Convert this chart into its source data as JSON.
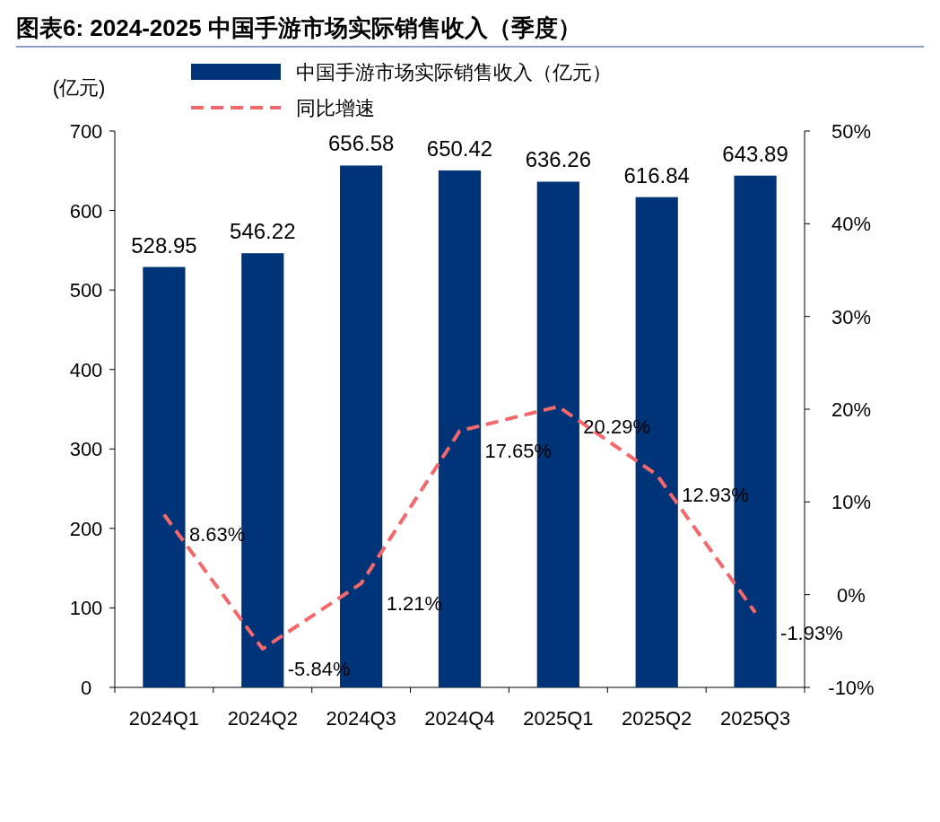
{
  "chart_data": {
    "type": "bar",
    "title": "图表6:   2024-2025 中国手游市场实际销售收入（季度）",
    "ylabel": "(亿元)",
    "categories": [
      "2024Q1",
      "2024Q2",
      "2024Q3",
      "2024Q4",
      "2025Q1",
      "2025Q2",
      "2025Q3"
    ],
    "series": [
      {
        "name": "中国手游市场实际销售收入（亿元）",
        "color": "#003478",
        "values": [
          528.95,
          546.22,
          656.58,
          650.42,
          636.26,
          616.84,
          643.89
        ],
        "value_labels": [
          "528.95",
          "546.22",
          "656.58",
          "650.42",
          "636.26",
          "616.84",
          "643.89"
        ]
      },
      {
        "name": "同比增速",
        "type": "line",
        "axis": "y2",
        "color": "#f4676b",
        "line_style": "dashed",
        "marker": "none",
        "values": [
          8.63,
          -5.84,
          1.21,
          17.65,
          20.29,
          12.93,
          -1.93
        ],
        "value_labels": [
          "8.63%",
          "-5.84%",
          "1.21%",
          "17.65%",
          "20.29%",
          "12.93%",
          "-1.93%"
        ]
      }
    ],
    "ylim": [
      0,
      700
    ],
    "yticks": [
      0,
      100,
      200,
      300,
      400,
      500,
      600,
      700
    ],
    "y2lim": [
      -10,
      50
    ],
    "y2ticks": [
      {
        "value": -10,
        "label": "-10%"
      },
      {
        "value": 0,
        "label": "0%"
      },
      {
        "value": 10,
        "label": "10%"
      },
      {
        "value": 20,
        "label": "20%"
      },
      {
        "value": 30,
        "label": "30%"
      },
      {
        "value": 40,
        "label": "40%"
      },
      {
        "value": 50,
        "label": "50%"
      }
    ],
    "legend": "top",
    "grid": false
  }
}
